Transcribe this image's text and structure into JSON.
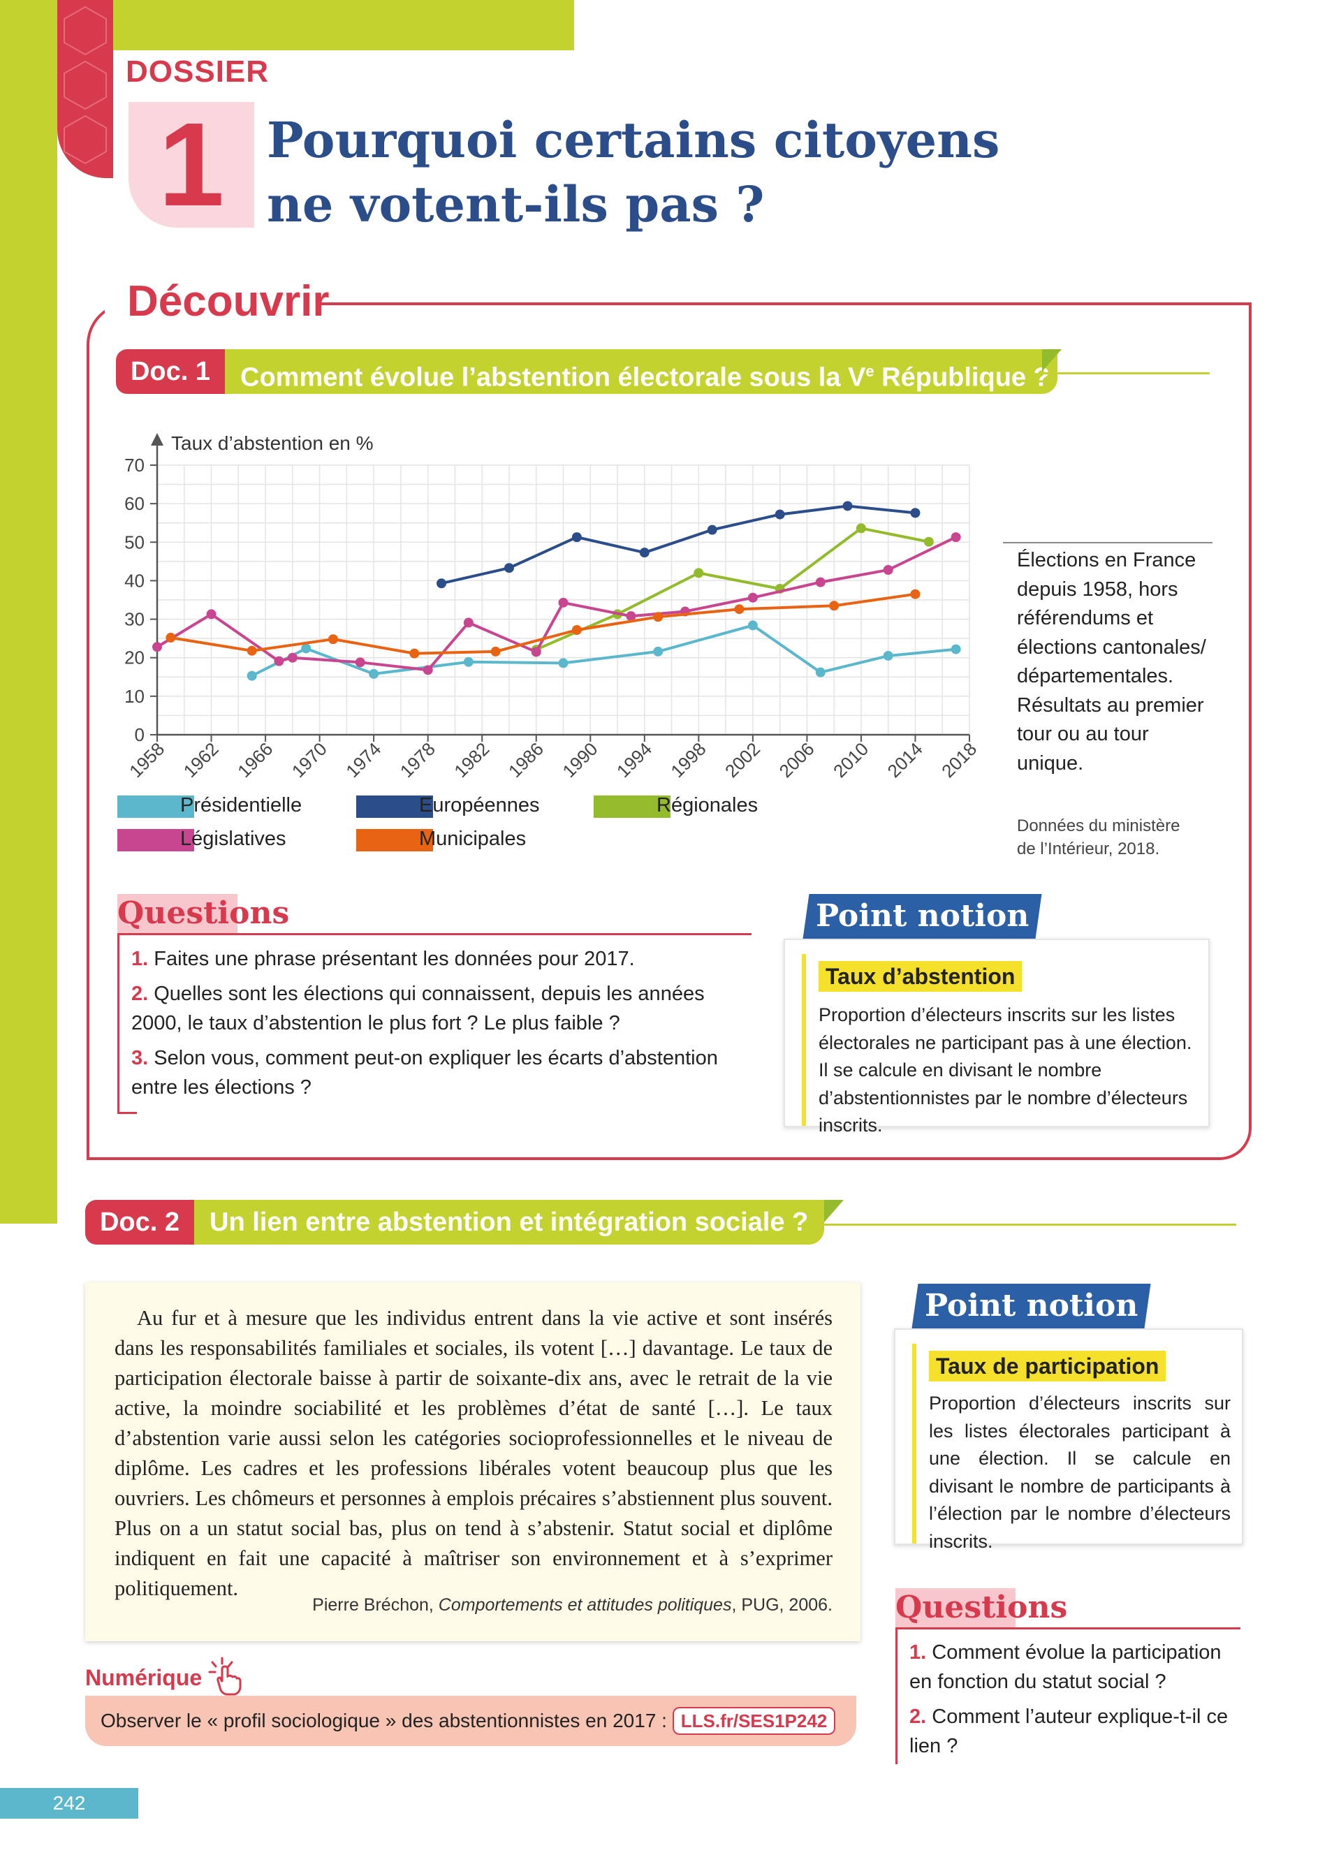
{
  "header": {
    "dossier_label": "DOSSIER",
    "dossier_number": "1",
    "title_line1": "Pourquoi certains citoyens",
    "title_line2": "ne votent-ils pas ?"
  },
  "discover": {
    "heading": "Découvrir"
  },
  "doc1": {
    "tag": "Doc. 1",
    "title_pre": "Comment évolue l’abstention électorale sous la V",
    "title_sup": "e",
    "title_post": " République ?",
    "side_note": "Élections en France depuis 1958, hors référendums et élections cantonales/ départementales. Résultats au premier tour ou au tour unique.",
    "source_line1": "Données du ministère",
    "source_line2": "de l’Intérieur, 2018."
  },
  "chart_data": {
    "type": "line",
    "ylabel": "Taux d’abstention en %",
    "xlabel": "",
    "ylim": [
      0,
      70
    ],
    "yticks": [
      "0",
      "10",
      "20",
      "30",
      "40",
      "50",
      "60",
      "70"
    ],
    "xlim": [
      1958,
      2018
    ],
    "xticks": [
      "1958",
      "1962",
      "1966",
      "1970",
      "1974",
      "1978",
      "1982",
      "1986",
      "1990",
      "1994",
      "1998",
      "2002",
      "2006",
      "2010",
      "2014",
      "2018"
    ],
    "grid": true,
    "legend_position": "bottom",
    "series": [
      {
        "name": "Présidentielle",
        "color": "#5bb8cc",
        "points": [
          [
            1965,
            15.3
          ],
          [
            1969,
            22.4
          ],
          [
            1974,
            15.8
          ],
          [
            1981,
            18.9
          ],
          [
            1988,
            18.6
          ],
          [
            1995,
            21.6
          ],
          [
            2002,
            28.4
          ],
          [
            2007,
            16.2
          ],
          [
            2012,
            20.5
          ],
          [
            2017,
            22.2
          ]
        ]
      },
      {
        "name": "Européennes",
        "color": "#2b4d8a",
        "points": [
          [
            1979,
            39.3
          ],
          [
            1984,
            43.3
          ],
          [
            1989,
            51.3
          ],
          [
            1994,
            47.3
          ],
          [
            1999,
            53.2
          ],
          [
            2004,
            57.2
          ],
          [
            2009,
            59.4
          ],
          [
            2014,
            57.6
          ]
        ]
      },
      {
        "name": "Régionales",
        "color": "#93bb2c",
        "points": [
          [
            1986,
            22.1
          ],
          [
            1992,
            31.3
          ],
          [
            1998,
            42.0
          ],
          [
            2004,
            37.9
          ],
          [
            2010,
            53.6
          ],
          [
            2015,
            50.1
          ]
        ]
      },
      {
        "name": "Législatives",
        "color": "#c8468f",
        "points": [
          [
            1958,
            22.8
          ],
          [
            1962,
            31.3
          ],
          [
            1967,
            19.1
          ],
          [
            1968,
            20.0
          ],
          [
            1973,
            18.8
          ],
          [
            1978,
            16.8
          ],
          [
            1981,
            29.1
          ],
          [
            1986,
            21.5
          ],
          [
            1988,
            34.3
          ],
          [
            1993,
            30.8
          ],
          [
            1997,
            32.0
          ],
          [
            2002,
            35.6
          ],
          [
            2007,
            39.6
          ],
          [
            2012,
            42.8
          ],
          [
            2017,
            51.3
          ]
        ]
      },
      {
        "name": "Municipales",
        "color": "#e86413",
        "points": [
          [
            1959,
            25.2
          ],
          [
            1965,
            21.8
          ],
          [
            1971,
            24.8
          ],
          [
            1977,
            21.1
          ],
          [
            1983,
            21.6
          ],
          [
            1989,
            27.2
          ],
          [
            1995,
            30.6
          ],
          [
            2001,
            32.6
          ],
          [
            2008,
            33.5
          ],
          [
            2014,
            36.5
          ]
        ]
      }
    ]
  },
  "questions1": {
    "heading": "Questions",
    "items": [
      {
        "num": "1.",
        "text": "Faites une phrase présentant les données pour 2017."
      },
      {
        "num": "2.",
        "text": "Quelles sont les élections qui connaissent, depuis les années 2000, le taux d’abstention le plus fort ? Le plus faible ?"
      },
      {
        "num": "3.",
        "text": "Selon vous, comment peut-on expliquer les écarts d’abstention entre les élections ?"
      }
    ]
  },
  "point_notion1": {
    "tag": "Point notion",
    "term": "Taux d’abstention",
    "text": "Proportion d’électeurs inscrits sur les listes électorales ne participant pas à une élection. Il se calcule en divisant le nombre d’abstentionnistes par le nombre d’électeurs inscrits."
  },
  "doc2": {
    "tag": "Doc. 2",
    "title": "Un lien entre abstention et intégration sociale ?",
    "quote": "Au fur et à mesure que les individus entrent dans la vie active et sont insérés dans les responsabilités familiales et sociales, ils votent […] davantage. Le taux de participation électorale baisse à partir de soixante-dix ans, avec le retrait de la vie active, la moindre sociabilité et les problèmes d’état de santé […]. Le taux d’abstention varie aussi selon les catégories socioprofessionnelles et le niveau de diplôme. Les cadres et les professions libérales votent beaucoup plus que les ouvriers. Les chômeurs et personnes à emplois précaires s’abstiennent plus souvent. Plus on a un statut social bas, plus on tend à s’abstenir. Statut social et diplôme indiquent en fait une capacité à maîtriser son environnement et à s’exprimer politiquement.",
    "source_author": "Pierre Bréchon, ",
    "source_title": "Comportements et attitudes politiques",
    "source_tail": ", PUG, 2006."
  },
  "point_notion2": {
    "tag": "Point notion",
    "term": "Taux de participation",
    "text": "Proportion d’électeurs inscrits sur les listes électorales participant à une élection. Il se calcule en divisant le nombre de participants à l’élection par le nombre d’électeurs inscrits."
  },
  "questions2": {
    "heading": "Questions",
    "items": [
      {
        "num": "1.",
        "text": "Comment évolue la participation en fonction du statut social ?"
      },
      {
        "num": "2.",
        "text": "Comment l’auteur explique-t-il ce lien ?"
      }
    ]
  },
  "numerique": {
    "label": "Numérique",
    "text": "Observer le « profil sociologique » des abstentionnistes en 2017 : ",
    "link": "LLS.fr/SES1P242"
  },
  "page_number": "242",
  "colors": {
    "accent_red": "#d63a4c",
    "accent_green": "#c3d22e",
    "accent_blue": "#2b5fa6",
    "highlight_yellow": "#f5e12b"
  }
}
